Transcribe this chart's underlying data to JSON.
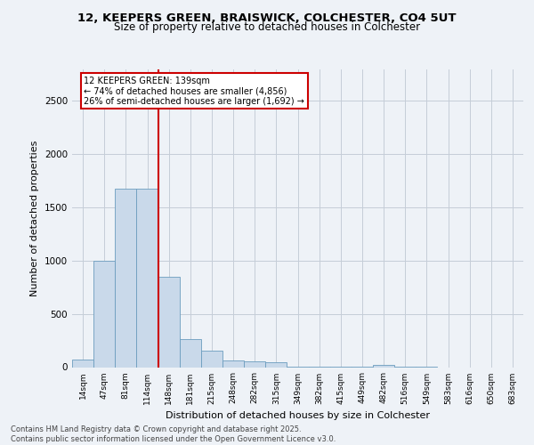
{
  "title_line1": "12, KEEPERS GREEN, BRAISWICK, COLCHESTER, CO4 5UT",
  "title_line2": "Size of property relative to detached houses in Colchester",
  "xlabel": "Distribution of detached houses by size in Colchester",
  "ylabel": "Number of detached properties",
  "categories": [
    "14sqm",
    "47sqm",
    "81sqm",
    "114sqm",
    "148sqm",
    "181sqm",
    "215sqm",
    "248sqm",
    "282sqm",
    "315sqm",
    "349sqm",
    "382sqm",
    "415sqm",
    "449sqm",
    "482sqm",
    "516sqm",
    "549sqm",
    "583sqm",
    "616sqm",
    "650sqm",
    "683sqm"
  ],
  "values": [
    75,
    1000,
    1680,
    1680,
    850,
    260,
    155,
    65,
    55,
    45,
    5,
    3,
    3,
    3,
    25,
    3,
    3,
    0,
    0,
    0,
    0
  ],
  "bar_color": "#c9d9ea",
  "bar_edge_color": "#6b9dbe",
  "vline_x": 3.5,
  "annotation_text": "12 KEEPERS GREEN: 139sqm\n← 74% of detached houses are smaller (4,856)\n26% of semi-detached houses are larger (1,692) →",
  "annotation_box_color": "#ffffff",
  "annotation_box_edge": "#cc0000",
  "vline_color": "#cc0000",
  "ylim_max": 2800,
  "yticks": [
    0,
    500,
    1000,
    1500,
    2000,
    2500
  ],
  "footer_line1": "Contains HM Land Registry data © Crown copyright and database right 2025.",
  "footer_line2": "Contains public sector information licensed under the Open Government Licence v3.0.",
  "background_color": "#eef2f7",
  "plot_bg_color": "#eef2f7",
  "grid_color": "#c5cdd8",
  "title_fontsize": 9.5,
  "subtitle_fontsize": 8.5
}
